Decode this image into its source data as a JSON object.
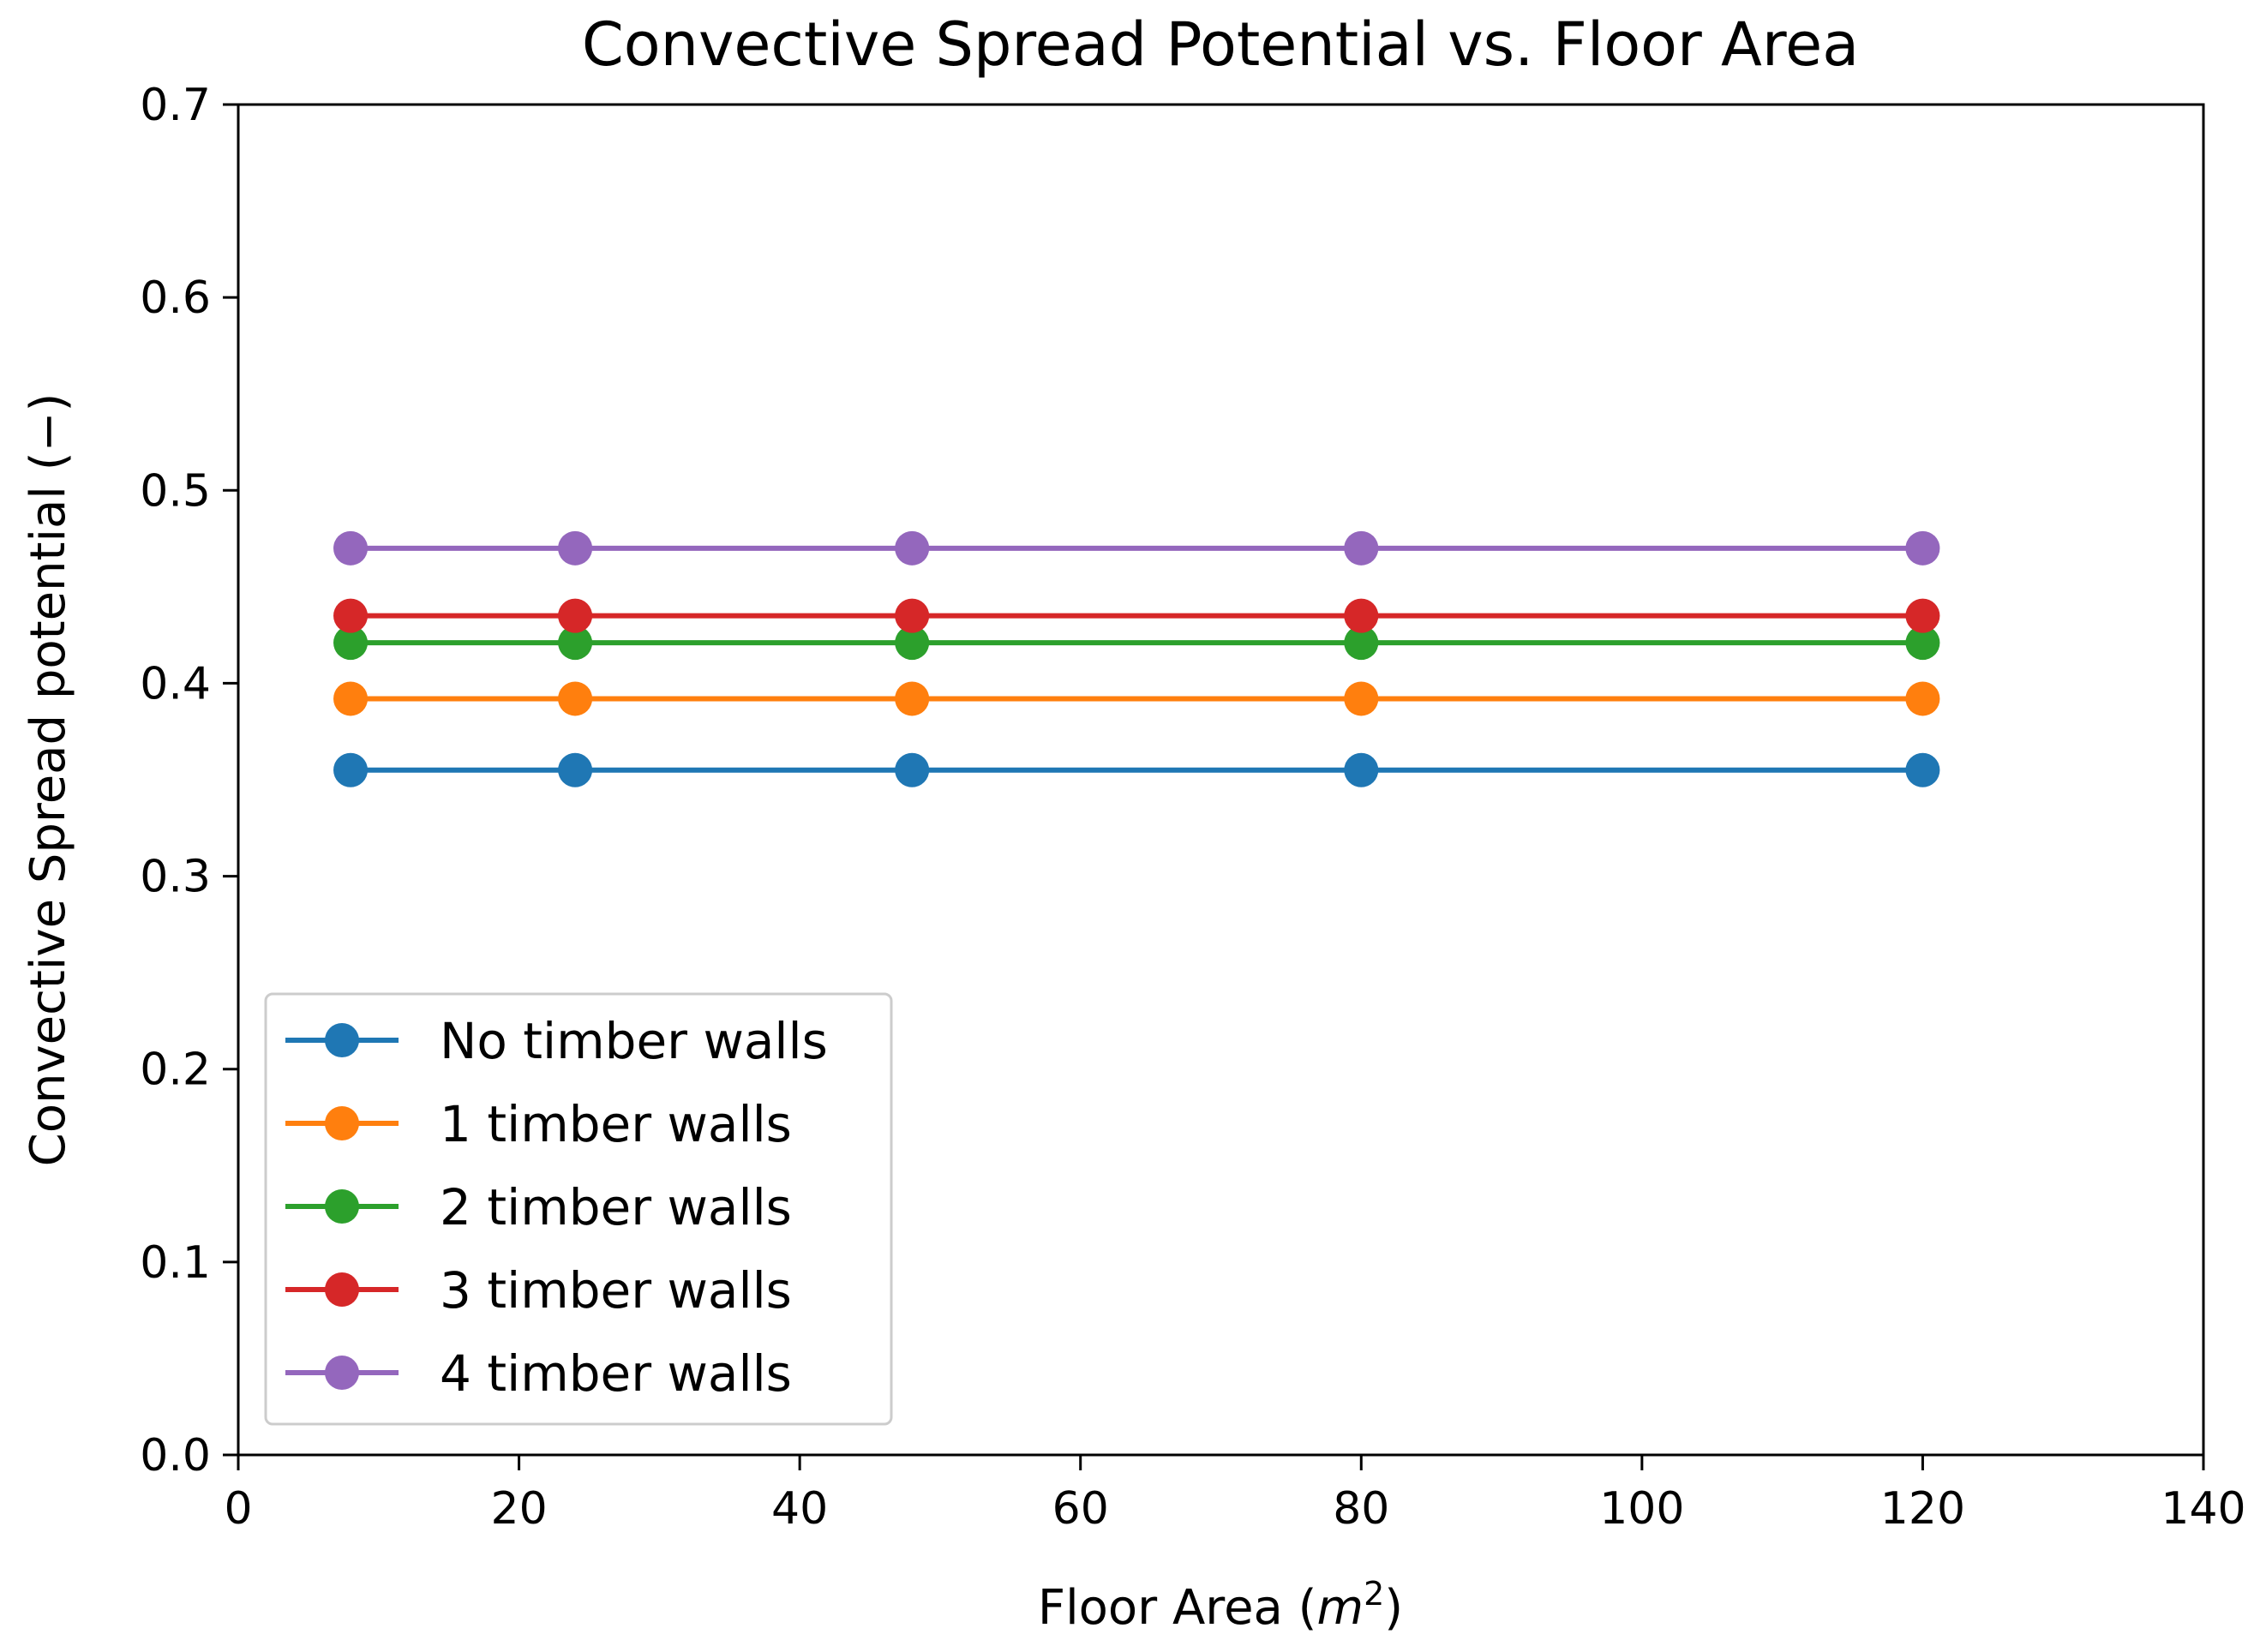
{
  "chart_data": {
    "type": "line",
    "title": "Convective Spread Potential vs. Floor Area",
    "xlabel": "Floor Area (m²)",
    "xlabel_base": "Floor Area (",
    "xlabel_var": "m",
    "xlabel_sup": "2",
    "xlabel_close": ")",
    "ylabel": "Convective Spread potential (−)",
    "xlim": [
      0,
      140
    ],
    "ylim": [
      0.0,
      0.7
    ],
    "xticks": [
      0,
      20,
      40,
      60,
      80,
      100,
      120,
      140
    ],
    "xtick_labels": [
      "0",
      "20",
      "40",
      "60",
      "80",
      "100",
      "120",
      "140"
    ],
    "yticks": [
      0.0,
      0.1,
      0.2,
      0.3,
      0.4,
      0.5,
      0.6,
      0.7
    ],
    "ytick_labels": [
      "0.0",
      "0.1",
      "0.2",
      "0.3",
      "0.4",
      "0.5",
      "0.6",
      "0.7"
    ],
    "grid": false,
    "legend_position": "lower-left",
    "x": [
      8,
      24,
      48,
      80,
      120
    ],
    "series": [
      {
        "name": "No timber walls",
        "color": "#1f77b4",
        "values": [
          0.355,
          0.355,
          0.355,
          0.355,
          0.355
        ]
      },
      {
        "name": "1 timber walls",
        "color": "#ff7f0e",
        "values": [
          0.392,
          0.392,
          0.392,
          0.392,
          0.392
        ]
      },
      {
        "name": "2 timber walls",
        "color": "#2ca02c",
        "values": [
          0.421,
          0.421,
          0.421,
          0.421,
          0.421
        ]
      },
      {
        "name": "3 timber walls",
        "color": "#d62728",
        "values": [
          0.435,
          0.435,
          0.435,
          0.435,
          0.435
        ]
      },
      {
        "name": "4 timber walls",
        "color": "#9467bd",
        "values": [
          0.47,
          0.47,
          0.47,
          0.47,
          0.47
        ]
      }
    ]
  }
}
